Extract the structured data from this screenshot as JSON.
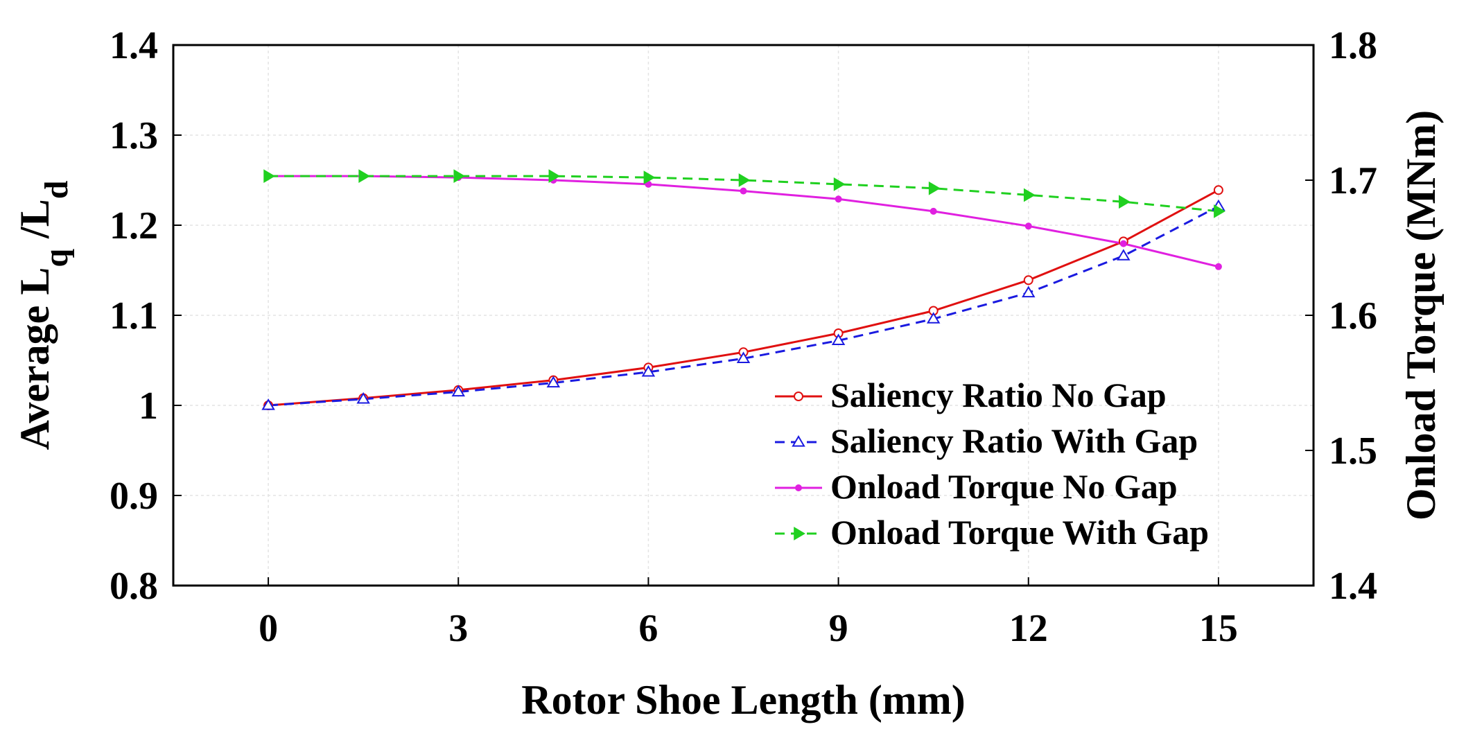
{
  "chart_data": {
    "type": "line",
    "xlabel": "Rotor Shoe Length (mm)",
    "ylabel_left": {
      "main": "Average L",
      "sub1": "q",
      "mid": " /L",
      "sub2": "d"
    },
    "ylabel_right": "Onload Torque (MNm)",
    "x_ticks": [
      "0",
      "3",
      "6",
      "9",
      "12",
      "15"
    ],
    "x_tick_values": [
      0,
      3,
      6,
      9,
      12,
      15
    ],
    "xlim": [
      -1.5,
      16.5
    ],
    "y_left_ticks": [
      "0.8",
      "0.9",
      "1",
      "1.1",
      "1.2",
      "1.3",
      "1.4"
    ],
    "y_left_tick_values": [
      0.8,
      0.9,
      1.0,
      1.1,
      1.2,
      1.3,
      1.4
    ],
    "ylim_left": [
      0.8,
      1.4
    ],
    "y_right_ticks": [
      "1.4",
      "1.5",
      "1.6",
      "1.7",
      "1.8"
    ],
    "y_right_tick_values": [
      1.4,
      1.5,
      1.6,
      1.7,
      1.8
    ],
    "ylim_right": [
      1.4,
      1.8
    ],
    "grid": true,
    "legend_position": "lower-right",
    "x": [
      0,
      1.5,
      3,
      4.5,
      6,
      7.5,
      9,
      10.5,
      12,
      13.5,
      15
    ],
    "series": [
      {
        "name": "Saliency Ratio No Gap",
        "axis": "left",
        "color": "#e01010",
        "dash": "solid",
        "marker": "circle-open",
        "values": [
          1.0,
          1.008,
          1.017,
          1.028,
          1.042,
          1.059,
          1.08,
          1.105,
          1.139,
          1.182,
          1.239
        ]
      },
      {
        "name": "Saliency Ratio With Gap",
        "axis": "left",
        "color": "#1a1ae0",
        "dash": "dashed",
        "marker": "triangle-up-open",
        "values": [
          1.0,
          1.007,
          1.015,
          1.025,
          1.037,
          1.052,
          1.072,
          1.096,
          1.125,
          1.166,
          1.221
        ]
      },
      {
        "name": "Onload Torque No Gap",
        "axis": "right",
        "color": "#e020e0",
        "dash": "solid",
        "marker": "dot",
        "values": [
          1.703,
          1.703,
          1.702,
          1.7,
          1.697,
          1.692,
          1.686,
          1.677,
          1.666,
          1.653,
          1.636
        ]
      },
      {
        "name": "Onload Torque With Gap",
        "axis": "right",
        "color": "#20d020",
        "dash": "dashed",
        "marker": "triangle-right",
        "values": [
          1.703,
          1.703,
          1.703,
          1.703,
          1.702,
          1.7,
          1.697,
          1.694,
          1.689,
          1.684,
          1.677
        ]
      }
    ]
  }
}
